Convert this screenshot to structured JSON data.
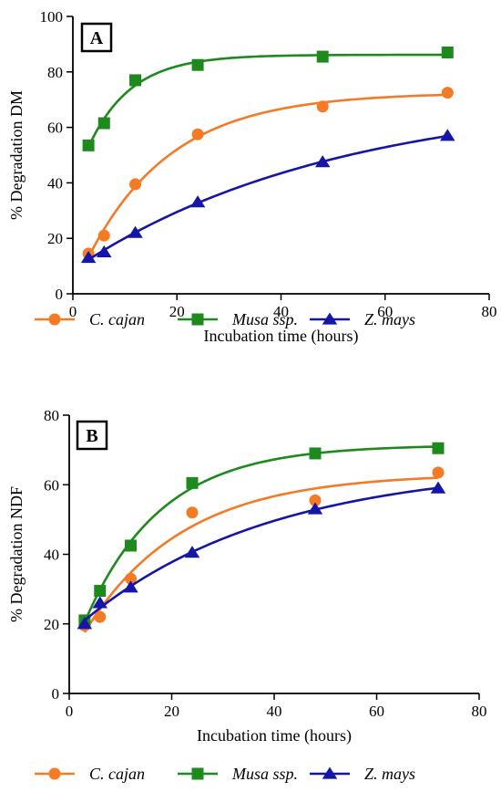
{
  "colors": {
    "C. cajan": "#F47A25",
    "Musa ssp.": "#1E8A1E",
    "Z. mays": "#1515A8"
  },
  "chart_data": [
    {
      "type": "line",
      "panel_label": "A",
      "xlabel": "Incubation time (hours)",
      "ylabel": "% Degradation DM",
      "xlim": [
        0,
        80
      ],
      "ylim": [
        0,
        100
      ],
      "xticks": [
        "0",
        "20",
        "40",
        "60",
        "80"
      ],
      "yticks": [
        "0",
        "20",
        "40",
        "60",
        "80",
        "100"
      ],
      "grid": false,
      "legend_position": "bottom",
      "x": [
        3,
        6,
        12,
        24,
        48,
        72
      ],
      "series": [
        {
          "name": "C. cajan",
          "marker": "circle",
          "values": [
            14.5,
            21,
            39.5,
            57.5,
            67.5,
            72.5
          ]
        },
        {
          "name": "Musa ssp.",
          "marker": "square",
          "values": [
            53.5,
            61.5,
            77,
            82.5,
            85.5,
            87
          ]
        },
        {
          "name": "Z. mays",
          "marker": "triangle",
          "values": [
            13,
            15,
            22,
            33,
            47.5,
            57
          ]
        }
      ]
    },
    {
      "type": "line",
      "panel_label": "B",
      "xlabel": "Incubation time (hours)",
      "ylabel": "% Degradation NDF",
      "xlim": [
        0,
        80
      ],
      "ylim": [
        0,
        80
      ],
      "xticks": [
        "0",
        "20",
        "40",
        "60",
        "80"
      ],
      "yticks": [
        "0",
        "20",
        "40",
        "60",
        "80"
      ],
      "grid": false,
      "legend_position": "bottom",
      "x": [
        3,
        6,
        12,
        24,
        48,
        72
      ],
      "series": [
        {
          "name": "C. cajan",
          "marker": "circle",
          "values": [
            19.5,
            22,
            33,
            52,
            55.5,
            63.5
          ]
        },
        {
          "name": "Musa ssp.",
          "marker": "square",
          "values": [
            21,
            29.5,
            42.5,
            60.5,
            69,
            70.5
          ]
        },
        {
          "name": "Z. mays",
          "marker": "triangle",
          "values": [
            20,
            26,
            30.5,
            40.5,
            53,
            59
          ]
        }
      ]
    }
  ]
}
